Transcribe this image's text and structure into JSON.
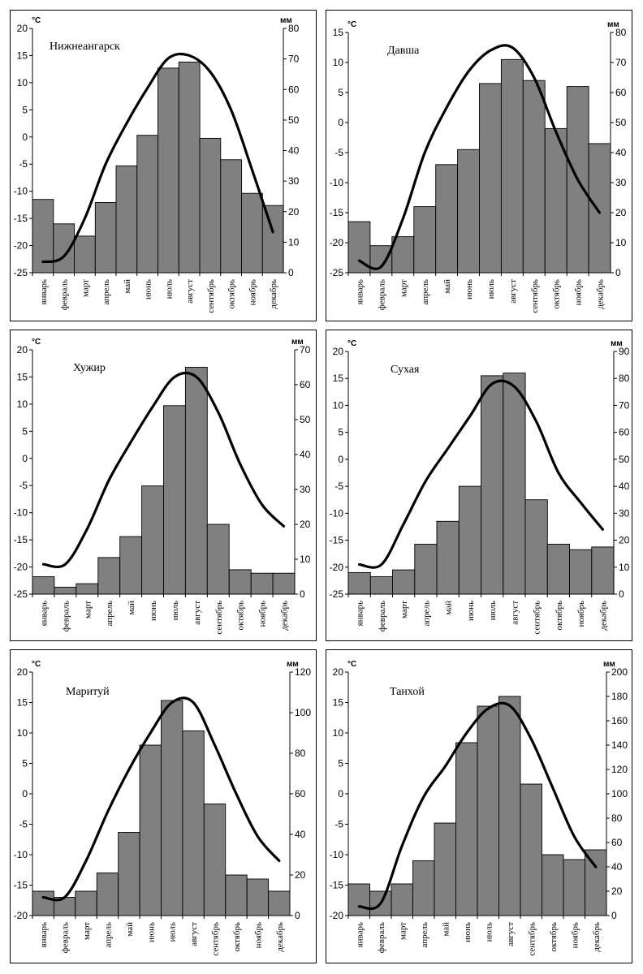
{
  "chart_data": [
    {
      "type": "bar",
      "title": "Нижнеангарск",
      "left_unit": "°С",
      "right_unit": "мм",
      "categories": [
        "январь",
        "февраль",
        "март",
        "апрель",
        "май",
        "июнь",
        "июль",
        "август",
        "сентябрь",
        "октябрь",
        "ноябрь",
        "декабрь"
      ],
      "temp_ticks": [
        20,
        15,
        10,
        5,
        0,
        -5,
        -10,
        -15,
        -20,
        -25
      ],
      "temp_lim": [
        -25,
        20
      ],
      "precip_ticks": [
        80,
        70,
        60,
        50,
        40,
        30,
        20,
        10,
        0
      ],
      "precip_lim": [
        0,
        80
      ],
      "series": [
        {
          "values": [
            24,
            16,
            12,
            23,
            35,
            45,
            67,
            69,
            44,
            37,
            26,
            22
          ]
        },
        {
          "values": [
            -23,
            -22,
            -15,
            -5,
            2.5,
            9,
            14.5,
            15,
            12,
            5,
            -6,
            -17.5
          ]
        }
      ]
    },
    {
      "type": "bar",
      "title": "Давша",
      "left_unit": "°С",
      "right_unit": "мм",
      "categories": [
        "январь",
        "февраль",
        "март",
        "апрель",
        "май",
        "июнь",
        "июль",
        "август",
        "сентябрь",
        "октябрь",
        "ноябрь",
        "декабрь"
      ],
      "temp_ticks": [
        15,
        10,
        5,
        0,
        -5,
        -10,
        -15,
        -20,
        -25
      ],
      "temp_lim": [
        -25,
        15
      ],
      "precip_ticks": [
        80,
        70,
        60,
        50,
        40,
        30,
        20,
        10,
        0
      ],
      "precip_lim": [
        0,
        80
      ],
      "series": [
        {
          "values": [
            17,
            9,
            12,
            22,
            36,
            41,
            63,
            71,
            64,
            48,
            62,
            43
          ]
        },
        {
          "values": [
            -23,
            -24,
            -16,
            -5,
            2.5,
            8.5,
            12,
            12.5,
            7.5,
            -1.5,
            -9.5,
            -15
          ]
        }
      ]
    },
    {
      "type": "bar",
      "title": "Хужир",
      "left_unit": "°С",
      "right_unit": "мм",
      "categories": [
        "январь",
        "февраль",
        "март",
        "апрель",
        "май",
        "июнь",
        "июль",
        "август",
        "сентябрь",
        "октябрь",
        "ноябрь",
        "декабрь"
      ],
      "temp_ticks": [
        20,
        15,
        10,
        5,
        0,
        -5,
        -10,
        -15,
        -20,
        -25
      ],
      "temp_lim": [
        -25,
        20
      ],
      "precip_ticks": [
        70,
        60,
        50,
        40,
        30,
        20,
        10,
        0
      ],
      "precip_lim": [
        0,
        70
      ],
      "series": [
        {
          "values": [
            5,
            2,
            3,
            10.5,
            16.5,
            31,
            54,
            65,
            20,
            7,
            6,
            6
          ]
        },
        {
          "values": [
            -19.5,
            -19.5,
            -13,
            -4,
            3,
            9.5,
            15,
            15,
            8.5,
            -1,
            -8.5,
            -12.5
          ]
        }
      ]
    },
    {
      "type": "bar",
      "title": "Сухая",
      "left_unit": "°С",
      "right_unit": "мм",
      "categories": [
        "январь",
        "февраль",
        "март",
        "апрель",
        "май",
        "июнь",
        "июль",
        "август",
        "сентябрь",
        "октябрь",
        "ноябрь",
        "декабрь"
      ],
      "temp_ticks": [
        20,
        15,
        10,
        5,
        0,
        -5,
        -10,
        -15,
        -20,
        -25
      ],
      "temp_lim": [
        -25,
        20
      ],
      "precip_ticks": [
        90,
        80,
        70,
        60,
        50,
        40,
        30,
        20,
        10,
        0
      ],
      "precip_lim": [
        0,
        90
      ],
      "series": [
        {
          "values": [
            8,
            6.5,
            9,
            18.5,
            27,
            40,
            81,
            82,
            35,
            18.5,
            16.5,
            17.5
          ]
        },
        {
          "values": [
            -19.5,
            -19.5,
            -12,
            -4,
            2,
            8,
            14,
            13.5,
            7,
            -2.5,
            -8,
            -13
          ]
        }
      ]
    },
    {
      "type": "bar",
      "title": "Маритуй",
      "left_unit": "°С",
      "right_unit": "мм",
      "categories": [
        "январь",
        "февраль",
        "март",
        "апрель",
        "май",
        "июнь",
        "июль",
        "август",
        "сентябрь",
        "октябрь",
        "ноябрь",
        "декабрь"
      ],
      "temp_ticks": [
        20,
        15,
        10,
        5,
        0,
        -5,
        -10,
        -15,
        -20
      ],
      "temp_lim": [
        -20,
        20
      ],
      "precip_ticks": [
        120,
        100,
        80,
        60,
        40,
        20,
        0
      ],
      "precip_lim": [
        0,
        120
      ],
      "series": [
        {
          "values": [
            12,
            9,
            12,
            21,
            41,
            84,
            106,
            91,
            55,
            20,
            18,
            12
          ]
        },
        {
          "values": [
            -17,
            -17,
            -11,
            -3,
            4,
            10,
            15,
            15,
            8,
            0,
            -7,
            -11
          ]
        }
      ]
    },
    {
      "type": "bar",
      "title": "Танхой",
      "left_unit": "°С",
      "right_unit": "мм",
      "categories": [
        "январь",
        "февраль",
        "март",
        "апрель",
        "май",
        "июнь",
        "июль",
        "август",
        "сентябрь",
        "октябрь",
        "ноябрь",
        "декабрь"
      ],
      "temp_ticks": [
        20,
        15,
        10,
        5,
        0,
        -5,
        -10,
        -15,
        -20
      ],
      "temp_lim": [
        -20,
        20
      ],
      "precip_ticks": [
        200,
        180,
        160,
        140,
        120,
        100,
        80,
        60,
        40,
        20,
        0
      ],
      "precip_lim": [
        0,
        200
      ],
      "series": [
        {
          "values": [
            26,
            20,
            26,
            45,
            76,
            142,
            172,
            180,
            108,
            50,
            46,
            54
          ]
        },
        {
          "values": [
            -18.5,
            -18,
            -8.5,
            -0.5,
            4.5,
            10,
            14,
            14.5,
            9,
            1,
            -7,
            -12
          ]
        }
      ]
    }
  ]
}
